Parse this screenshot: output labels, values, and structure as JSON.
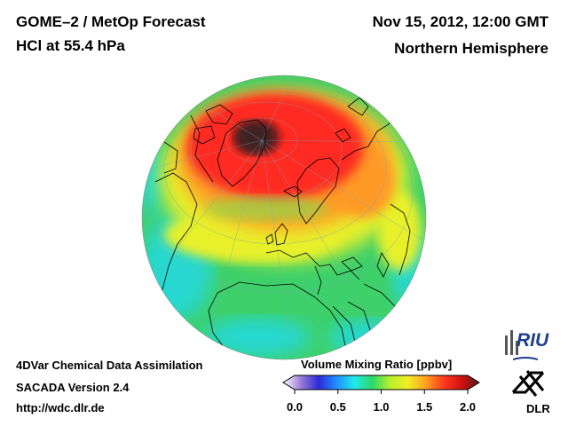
{
  "header": {
    "title": "GOME–2 / MetOp Forecast",
    "subtitle": "HCl at 55.4 hPa",
    "datetime": "Nov 15, 2012, 12:00 GMT",
    "region": "Northern Hemisphere"
  },
  "footer": {
    "method": "4DVar Chemical Data Assimilation",
    "version": "SACADA Version 2.4",
    "url": "http://wdc.dlr.de"
  },
  "colorbar": {
    "title": "Volume Mixing Ratio [ppbv]",
    "ticks": [
      "0.0",
      "0.5",
      "1.0",
      "1.5",
      "2.0"
    ],
    "min": 0.0,
    "max": 2.0,
    "colors": [
      "#ffffff",
      "#9a7cd6",
      "#2a2ad8",
      "#1f8fff",
      "#20e8e8",
      "#2cd86a",
      "#b8f02a",
      "#f2ee24",
      "#ffa020",
      "#ff3a1e",
      "#d01010",
      "#5a1a1a"
    ]
  },
  "logos": {
    "riu": "RIU",
    "dlr": "DLR"
  },
  "map_colors": {
    "ocean_green": "#3ed06a",
    "cyan": "#28d8d0",
    "yellow": "#e8f02c",
    "orange": "#ff9a28",
    "red": "#ff2a20",
    "dark_red": "#3c2424",
    "coast": "#000000"
  }
}
